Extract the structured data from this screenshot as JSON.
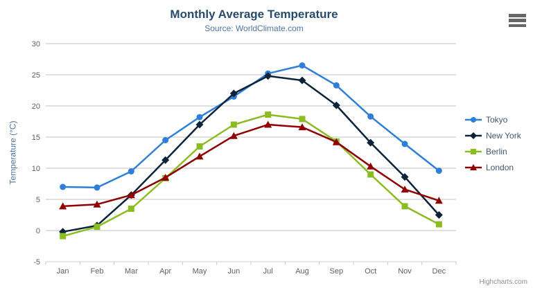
{
  "chart_data": {
    "type": "line",
    "title": "Monthly Average Temperature",
    "subtitle": "Source: WorldClimate.com",
    "categories": [
      "Jan",
      "Feb",
      "Mar",
      "Apr",
      "May",
      "Jun",
      "Jul",
      "Aug",
      "Sep",
      "Oct",
      "Nov",
      "Dec"
    ],
    "xlabel": "",
    "ylabel": "Temperature (°C)",
    "ylim": [
      -5,
      30
    ],
    "yticks": [
      30,
      25,
      20,
      15,
      10,
      5,
      0,
      -5
    ],
    "grid": true,
    "legend_position": "right",
    "series": [
      {
        "name": "Tokyo",
        "color": "#2f7ed8",
        "marker": "circle",
        "values": [
          7.0,
          6.9,
          9.5,
          14.5,
          18.2,
          21.5,
          25.2,
          26.5,
          23.3,
          18.3,
          13.9,
          9.6
        ]
      },
      {
        "name": "New York",
        "color": "#0d233a",
        "marker": "diamond",
        "values": [
          -0.2,
          0.8,
          5.7,
          11.3,
          17.0,
          22.0,
          24.8,
          24.1,
          20.1,
          14.1,
          8.6,
          2.5
        ]
      },
      {
        "name": "Berlin",
        "color": "#8bbc21",
        "marker": "square",
        "values": [
          -0.9,
          0.6,
          3.5,
          8.4,
          13.5,
          17.0,
          18.6,
          17.9,
          14.3,
          9.0,
          3.9,
          1.0
        ]
      },
      {
        "name": "London",
        "color": "#910000",
        "marker": "triangle",
        "values": [
          3.9,
          4.2,
          5.7,
          8.5,
          11.9,
          15.2,
          17.0,
          16.6,
          14.2,
          10.3,
          6.6,
          4.8
        ]
      }
    ]
  },
  "credits": {
    "label": "Highcharts.com"
  },
  "colors": {
    "title": "#274b6d",
    "subtitle": "#4d759e",
    "axis_title": "#4d759e",
    "tick_label": "#606060",
    "gridline": "#c0c0c0",
    "axis_line": "#c0d0e0",
    "legend_text": "#3e576f",
    "credits": "#909090",
    "menu_icon": "#666666"
  }
}
